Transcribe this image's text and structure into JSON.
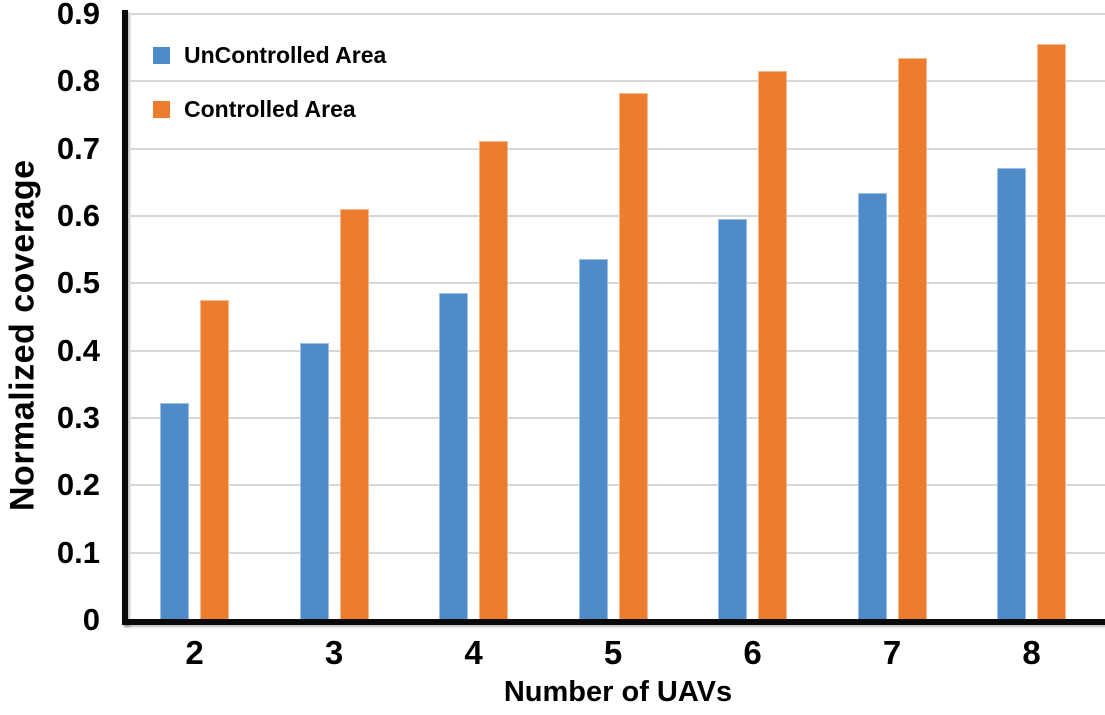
{
  "chart_data": {
    "type": "bar",
    "xlabel": "Number of UAVs",
    "ylabel": "Normalized coverage",
    "categories": [
      "2",
      "3",
      "4",
      "5",
      "6",
      "7",
      "8"
    ],
    "series": [
      {
        "name": "UnControlled Area",
        "color": "#4E8BC8",
        "values": [
          0.322,
          0.412,
          0.486,
          0.536,
          0.595,
          0.634,
          0.671
        ]
      },
      {
        "name": "Controlled Area",
        "color": "#ED7D2E",
        "values": [
          0.475,
          0.61,
          0.711,
          0.782,
          0.815,
          0.834,
          0.855
        ]
      }
    ],
    "ylim": [
      0,
      0.9
    ],
    "ytick_step": 0.1,
    "ytick_labels": [
      "0",
      "0.1",
      "0.2",
      "0.3",
      "0.4",
      "0.5",
      "0.6",
      "0.7",
      "0.8",
      "0.9"
    ],
    "grid": true,
    "legend_position": "top-left"
  },
  "colors": {
    "gridline": "#D6D6D6",
    "axis": "#0A0A0A",
    "text": "#000000"
  }
}
